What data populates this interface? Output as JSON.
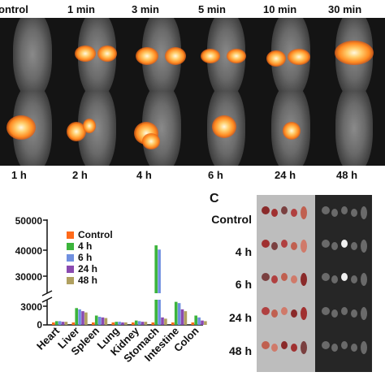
{
  "panel_a": {
    "row1_labels": [
      "ontrol",
      "1 min",
      "3 min",
      "5 min",
      "10 min",
      "30 min"
    ],
    "row2_labels": [
      "1 h",
      "2 h",
      "4 h",
      "6 h",
      "24 h",
      "48 h"
    ]
  },
  "panel_b": {
    "chart_data": {
      "type": "bar",
      "categories": [
        "Heart",
        "Liver",
        "Spleen",
        "Lung",
        "Kidney",
        "Stomach",
        "Intestine",
        "Colon"
      ],
      "series": [
        {
          "name": "Control",
          "color": "#ff6a1a",
          "values": [
            400,
            400,
            400,
            400,
            400,
            400,
            400,
            400
          ]
        },
        {
          "name": "4 h",
          "color": "#3cb43c",
          "values": [
            600,
            2700,
            1500,
            500,
            700,
            41000,
            3700,
            1500
          ]
        },
        {
          "name": "6 h",
          "color": "#7090e0",
          "values": [
            600,
            2500,
            1300,
            500,
            600,
            39500,
            3500,
            1200
          ]
        },
        {
          "name": "24 h",
          "color": "#8a4ab0",
          "values": [
            500,
            2200,
            1200,
            400,
            500,
            1200,
            2500,
            700
          ]
        },
        {
          "name": "48 h",
          "color": "#b0a060",
          "values": [
            500,
            2000,
            1100,
            400,
            500,
            1000,
            2200,
            600
          ]
        }
      ],
      "y_ticks": [
        "50000",
        "40000",
        "30000",
        "3000",
        "0"
      ],
      "axis_break": true,
      "ylim_lower": [
        0,
        4000
      ],
      "ylim_upper": [
        25000,
        50000
      ]
    }
  },
  "panel_c": {
    "letter": "C",
    "row_labels": [
      "Control",
      "4 h",
      "6 h",
      "24 h",
      "48 h"
    ]
  }
}
